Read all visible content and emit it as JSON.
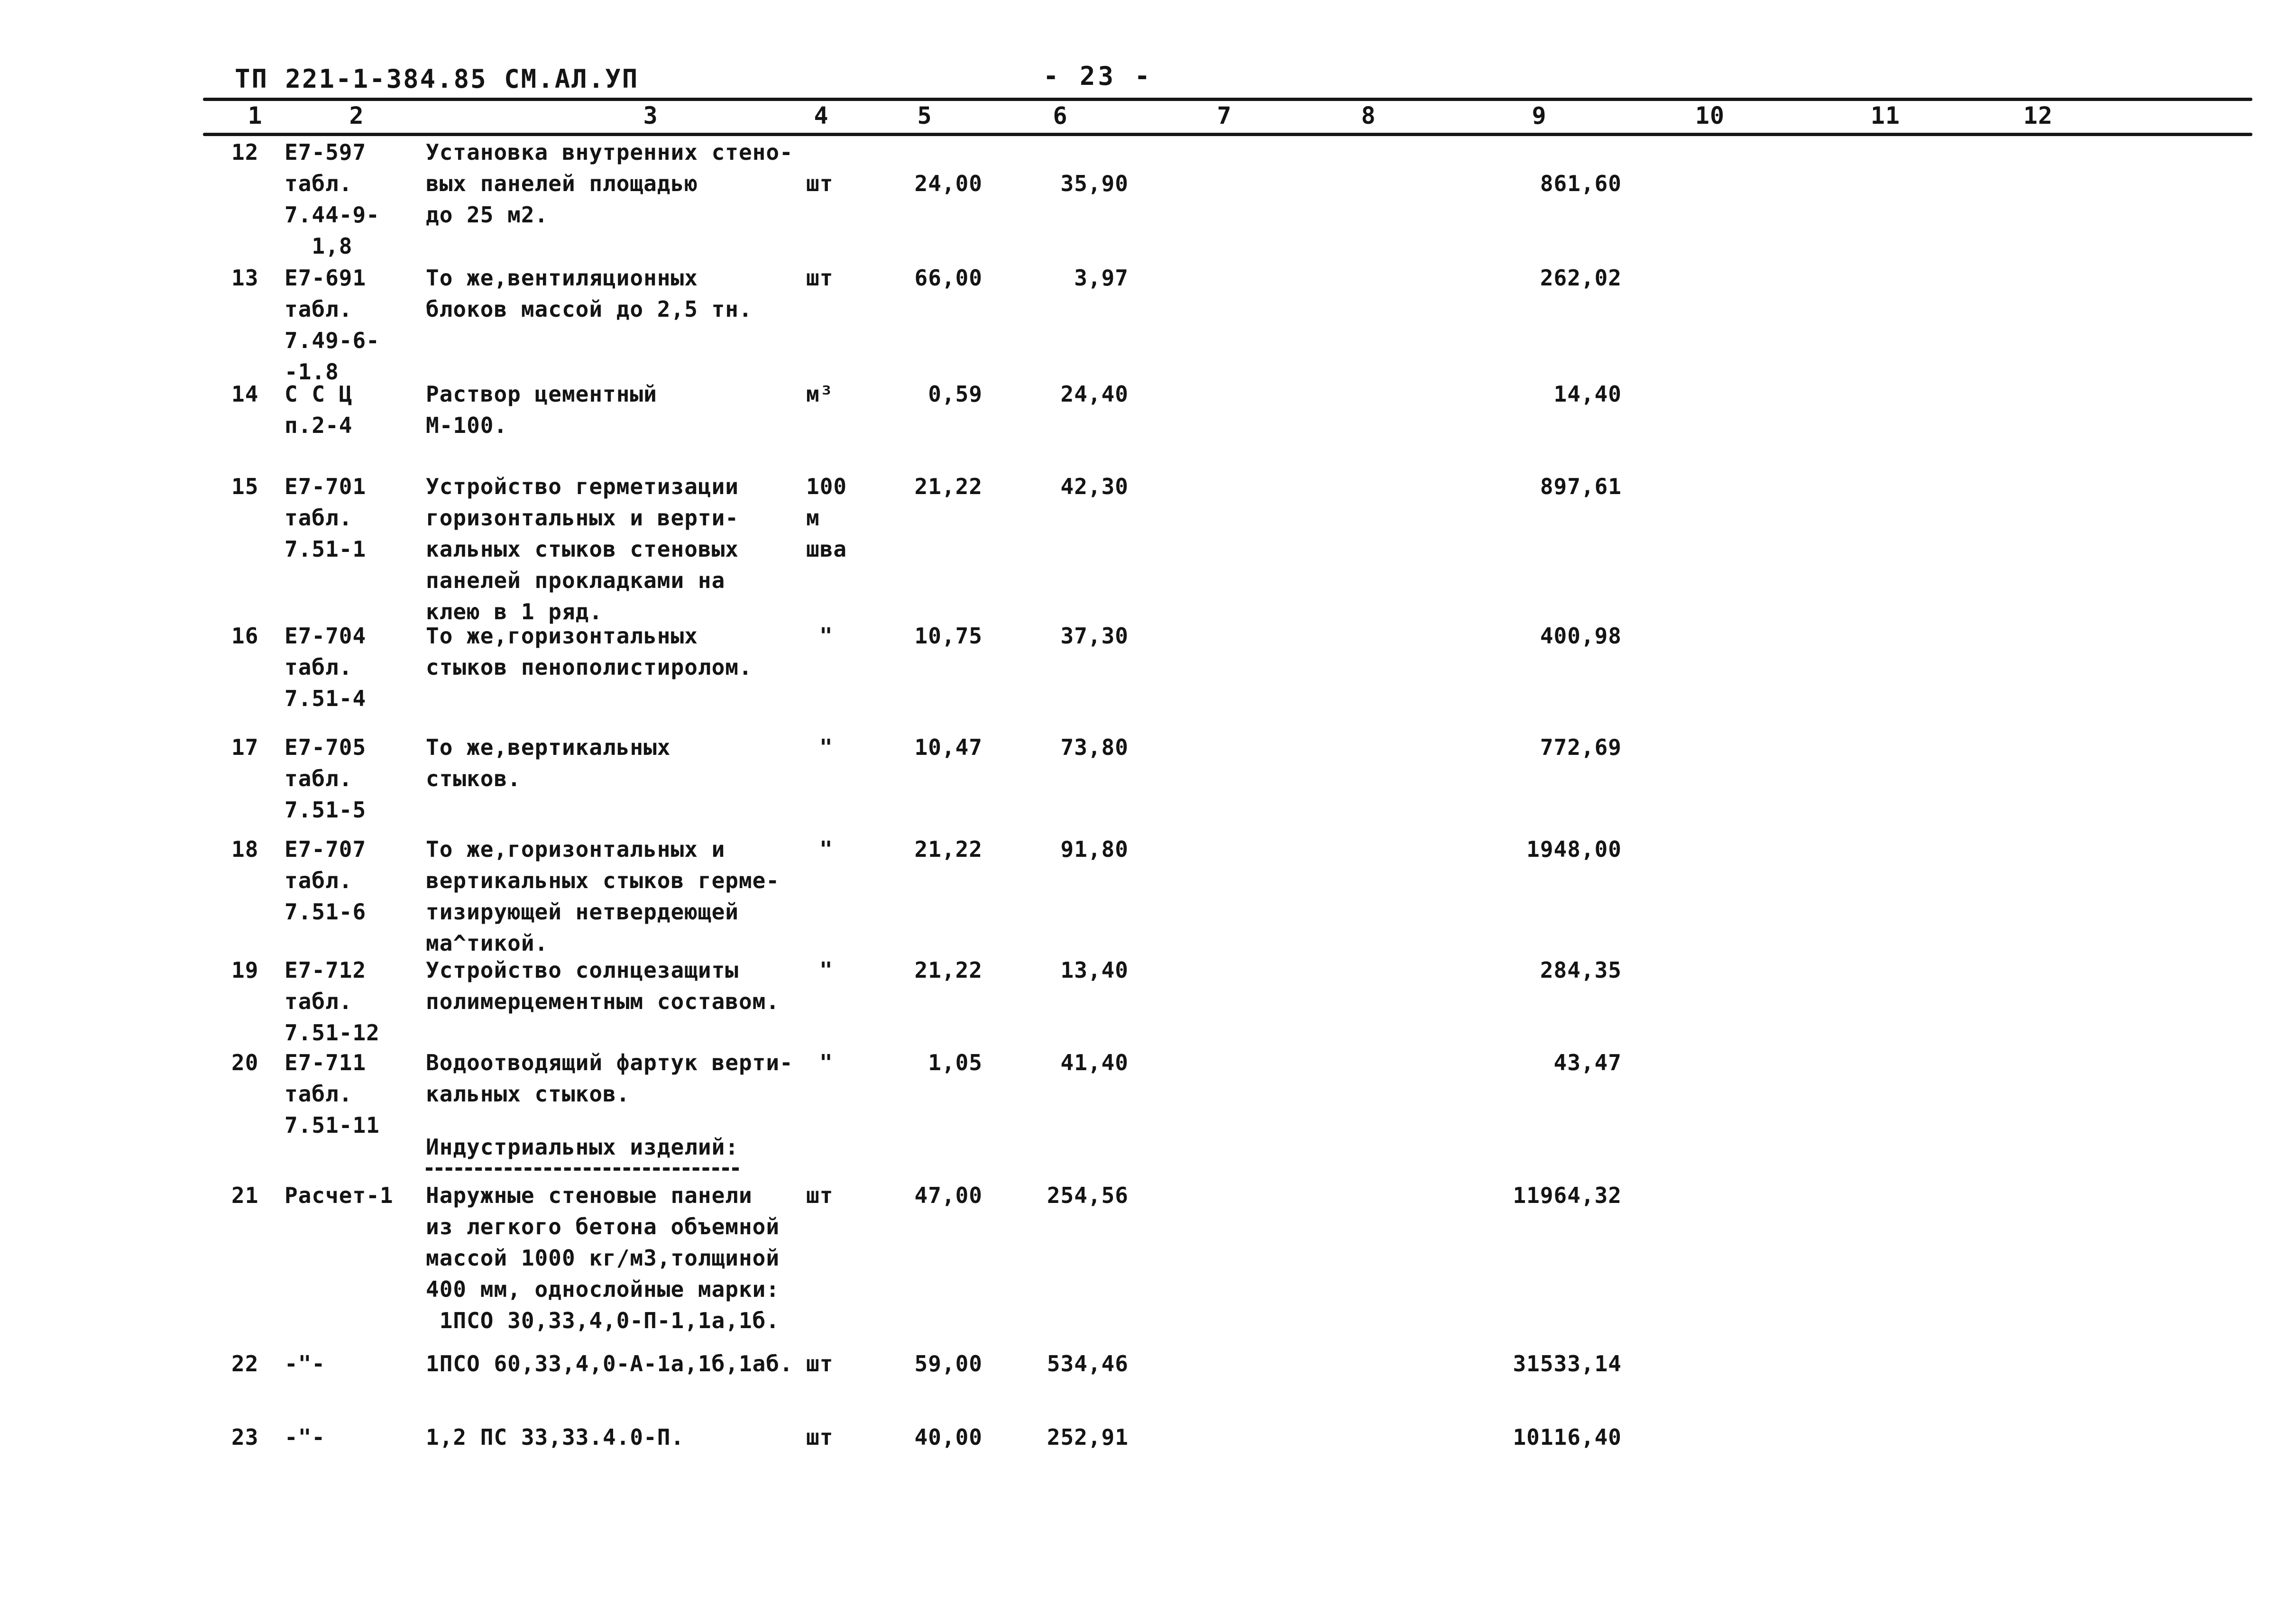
{
  "header": {
    "doc_code": "ТП 221-1-384.85 СМ.АЛ.УП",
    "page_number": "- 23 -"
  },
  "columns": {
    "labels": [
      "1",
      "2",
      "3",
      "4",
      "5",
      "6",
      "7",
      "8",
      "9",
      "10",
      "11",
      "12"
    ]
  },
  "section": {
    "title": "Индустриальных изделий:"
  },
  "rows": [
    {
      "num": "12",
      "basis": [
        "Е7-597",
        "табл.",
        "7.44-9-",
        "  1,8"
      ],
      "desc": [
        "Установка внутренних стено-",
        "вых панелей площадью",
        "до 25 м2."
      ],
      "unit": [
        "шт"
      ],
      "qty": "24,00",
      "price": "35,90",
      "total": "861,60"
    },
    {
      "num": "13",
      "basis": [
        "Е7-691",
        "табл.",
        "7.49-6-",
        "-1.8"
      ],
      "desc": [
        "То же,вентиляционных",
        "блоков массой до 2,5 тн."
      ],
      "unit": [
        "шт"
      ],
      "qty": "66,00",
      "price": "3,97",
      "total": "262,02"
    },
    {
      "num": "14",
      "basis": [
        "С С Ц",
        "п.2-4"
      ],
      "desc": [
        "Раствор цементный",
        "М-100."
      ],
      "unit": [
        "м³"
      ],
      "qty": "0,59",
      "price": "24,40",
      "total": "14,40"
    },
    {
      "num": "15",
      "basis": [
        "Е7-701",
        "табл.",
        "7.51-1"
      ],
      "desc": [
        "Устройство герметизации",
        "горизонтальных и верти-",
        "кальных стыков стеновых",
        "панелей прокладками на",
        "клею в 1 ряд."
      ],
      "unit": [
        "100",
        "м",
        "шва"
      ],
      "qty": "21,22",
      "price": "42,30",
      "total": "897,61"
    },
    {
      "num": "16",
      "basis": [
        "Е7-704",
        "табл.",
        "7.51-4"
      ],
      "desc": [
        "То же,горизонтальных",
        "стыков пенополистиролом."
      ],
      "unit": [
        "\""
      ],
      "qty": "10,75",
      "price": "37,30",
      "total": "400,98"
    },
    {
      "num": "17",
      "basis": [
        "Е7-705",
        "табл.",
        "7.51-5"
      ],
      "desc": [
        "То же,вертикальных",
        "стыков."
      ],
      "unit": [
        "\""
      ],
      "qty": "10,47",
      "price": "73,80",
      "total": "772,69"
    },
    {
      "num": "18",
      "basis": [
        "Е7-707",
        "табл.",
        "7.51-6"
      ],
      "desc": [
        "То же,горизонтальных и",
        "вертикальных стыков герме-",
        "тизирующей нетвердеющей",
        "ма^тикой."
      ],
      "unit": [
        "\""
      ],
      "qty": "21,22",
      "price": "91,80",
      "total": "1948,00"
    },
    {
      "num": "19",
      "basis": [
        "Е7-712",
        "табл.",
        "7.51-12"
      ],
      "desc": [
        "Устройство солнцезащиты",
        "полимерцементным составом."
      ],
      "unit": [
        "\""
      ],
      "qty": "21,22",
      "price": "13,40",
      "total": "284,35"
    },
    {
      "num": "20",
      "basis": [
        "Е7-711",
        "табл.",
        "7.51-11"
      ],
      "desc": [
        "Водоотводящий фартук верти-",
        "кальных стыков."
      ],
      "unit": [
        "\""
      ],
      "qty": "1,05",
      "price": "41,40",
      "total": "43,47"
    },
    {
      "num": "21",
      "basis": [
        "Расчет-1"
      ],
      "desc": [
        "Наружные стеновые панели",
        "из легкого бетона объемной",
        "массой 1000 кг/м3,толщиной",
        "400 мм, однослойные марки:",
        " 1ПСО 30,33,4,0-П-1,1а,1б."
      ],
      "unit": [
        "шт"
      ],
      "qty": "47,00",
      "price": "254,56",
      "total": "11964,32"
    },
    {
      "num": "22",
      "basis": [
        "-\"-"
      ],
      "desc": [
        "1ПСО 60,33,4,0-А-1а,1б,1аб."
      ],
      "unit": [
        "шт"
      ],
      "qty": "59,00",
      "price": "534,46",
      "total": "31533,14"
    },
    {
      "num": "23",
      "basis": [
        "-\"-"
      ],
      "desc": [
        "1,2 ПС 33,33.4.0-П."
      ],
      "unit": [
        "шт"
      ],
      "qty": "40,00",
      "price": "252,91",
      "total": "10116,40"
    }
  ]
}
